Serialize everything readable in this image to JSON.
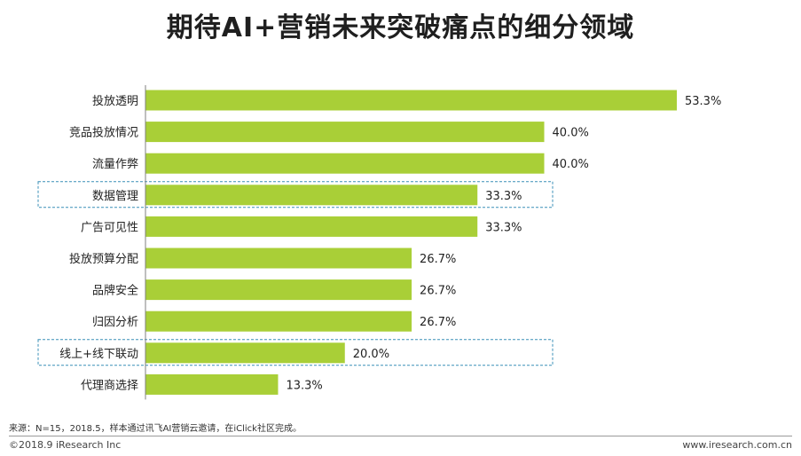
{
  "title": "期待AI+营销未来突破痛点的细分领域",
  "source": "来源：N=15，2018.5，样本通过讯飞AI营销云邀请，在iClick社区完成。",
  "copyright": "©2018.9 iResearch Inc",
  "website": "www.iresearch.com.cn",
  "colors": {
    "bar": "#a9cf37",
    "highlight_border": "#3a8fb7",
    "axis": "#7f7f7f"
  },
  "chart_data": {
    "type": "bar",
    "orientation": "horizontal",
    "title": "期待AI+营销未来突破痛点的细分领域",
    "categories": [
      "投放透明",
      "竞品投放情况",
      "流量作弊",
      "数据管理",
      "广告可见性",
      "投放预算分配",
      "品牌安全",
      "归因分析",
      "线上+线下联动",
      "代理商选择"
    ],
    "values": [
      53.3,
      40.0,
      40.0,
      33.3,
      33.3,
      26.7,
      26.7,
      26.7,
      20.0,
      13.3
    ],
    "data_labels": [
      "53.3%",
      "40.0%",
      "40.0%",
      "33.3%",
      "33.3%",
      "26.7%",
      "26.7%",
      "26.7%",
      "20.0%",
      "13.3%"
    ],
    "highlighted": [
      "数据管理",
      "线上+线下联动"
    ],
    "xlim": [
      0,
      53.3
    ],
    "grid": false,
    "legend": "none"
  }
}
